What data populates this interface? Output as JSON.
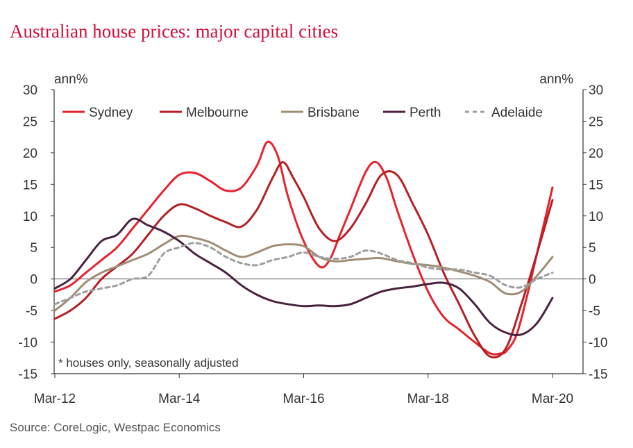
{
  "title": "Australian house prices: major capital cities",
  "source": "Source: CoreLogic, Westpac Economics",
  "chart_data": {
    "type": "line",
    "title": "Australian house prices: major capital cities",
    "unit_left": "ann%",
    "unit_right": "ann%",
    "note": "* houses only, seasonally adjusted",
    "ylim": [
      -15,
      30
    ],
    "yticks": [
      -15,
      -10,
      -5,
      0,
      5,
      10,
      15,
      20,
      25,
      30
    ],
    "xlim": [
      "Mar-12",
      "Mar-20"
    ],
    "xticks": [
      "Mar-12",
      "Mar-14",
      "Mar-16",
      "Mar-18",
      "Mar-20"
    ],
    "grid": false,
    "legend": "top",
    "series": [
      {
        "name": "Sydney",
        "color": "#e8222d",
        "dash": false,
        "x": [
          "2012-03",
          "2012-06",
          "2012-09",
          "2012-12",
          "2013-03",
          "2013-06",
          "2013-09",
          "2013-12",
          "2014-03",
          "2014-06",
          "2014-09",
          "2014-12",
          "2015-03",
          "2015-06",
          "2015-08",
          "2015-10",
          "2015-12",
          "2016-03",
          "2016-06",
          "2016-08",
          "2016-10",
          "2016-12",
          "2017-03",
          "2017-05",
          "2017-07",
          "2017-09",
          "2017-12",
          "2018-03",
          "2018-06",
          "2018-09",
          "2018-12",
          "2019-03",
          "2019-05",
          "2019-06",
          "2019-08",
          "2019-10",
          "2019-12",
          "2020-03"
        ],
        "y": [
          -2,
          -1,
          1,
          3,
          5,
          8,
          11,
          14,
          16.5,
          16.8,
          15.5,
          14,
          14.5,
          18,
          21.7,
          19.5,
          13,
          6,
          2,
          3,
          7,
          11,
          17,
          18.5,
          16,
          11,
          4,
          -2,
          -6,
          -8,
          -10,
          -11.8,
          -11.8,
          -11.5,
          -9,
          -3,
          4,
          14.5
        ]
      },
      {
        "name": "Melbourne",
        "color": "#b32025",
        "dash": false,
        "x": [
          "2012-03",
          "2012-06",
          "2012-09",
          "2012-12",
          "2013-03",
          "2013-06",
          "2013-09",
          "2013-12",
          "2014-03",
          "2014-06",
          "2014-09",
          "2014-12",
          "2015-03",
          "2015-06",
          "2015-09",
          "2015-11",
          "2016-01",
          "2016-03",
          "2016-06",
          "2016-09",
          "2016-12",
          "2017-03",
          "2017-06",
          "2017-09",
          "2017-12",
          "2018-03",
          "2018-06",
          "2018-09",
          "2018-12",
          "2019-03",
          "2019-06",
          "2019-09",
          "2019-12",
          "2020-03"
        ],
        "y": [
          -6.3,
          -5,
          -3,
          0,
          2,
          4,
          7,
          10,
          11.8,
          11.2,
          10,
          9,
          8.3,
          11,
          16,
          18.5,
          16,
          13,
          8,
          6,
          8,
          12,
          16.5,
          16.5,
          12,
          7,
          1,
          -4,
          -9,
          -12.3,
          -11,
          -4,
          4,
          12.5
        ]
      },
      {
        "name": "Brisbane",
        "color": "#a08d75",
        "dash": false,
        "x": [
          "2012-03",
          "2012-06",
          "2012-09",
          "2012-12",
          "2013-03",
          "2013-06",
          "2013-09",
          "2013-12",
          "2014-03",
          "2014-06",
          "2014-09",
          "2014-12",
          "2015-03",
          "2015-06",
          "2015-09",
          "2015-12",
          "2016-03",
          "2016-06",
          "2016-09",
          "2016-12",
          "2017-03",
          "2017-06",
          "2017-09",
          "2017-12",
          "2018-03",
          "2018-06",
          "2018-09",
          "2018-12",
          "2019-03",
          "2019-06",
          "2019-09",
          "2019-12",
          "2020-03"
        ],
        "y": [
          -5,
          -3,
          -0.5,
          1,
          2,
          3,
          4,
          5.5,
          6.8,
          6.5,
          5.8,
          4.5,
          3.5,
          4.2,
          5.2,
          5.5,
          5.2,
          3.5,
          2.8,
          3,
          3.2,
          3.3,
          2.8,
          2.4,
          2.2,
          1.8,
          1.2,
          0.5,
          -0.5,
          -2.3,
          -2,
          0.5,
          3.5
        ]
      },
      {
        "name": "Perth",
        "color": "#4b2140",
        "dash": false,
        "x": [
          "2012-03",
          "2012-06",
          "2012-09",
          "2012-12",
          "2013-03",
          "2013-06",
          "2013-09",
          "2013-12",
          "2014-03",
          "2014-06",
          "2014-09",
          "2014-12",
          "2015-03",
          "2015-06",
          "2015-09",
          "2015-12",
          "2016-03",
          "2016-06",
          "2016-09",
          "2016-12",
          "2017-03",
          "2017-06",
          "2017-09",
          "2017-12",
          "2018-03",
          "2018-06",
          "2018-09",
          "2018-12",
          "2019-03",
          "2019-06",
          "2019-09",
          "2019-12",
          "2020-03"
        ],
        "y": [
          -1.5,
          0,
          3,
          6,
          7,
          9.5,
          8.5,
          7.5,
          6,
          4,
          2.5,
          1,
          -1,
          -2.5,
          -3.5,
          -4,
          -4.3,
          -4.2,
          -4.3,
          -4,
          -3,
          -2,
          -1.5,
          -1.2,
          -0.8,
          -0.6,
          -1.5,
          -4,
          -7,
          -8.5,
          -8.8,
          -7,
          -3
        ]
      },
      {
        "name": "Adelaide",
        "color": "#9e9e9e",
        "dash": true,
        "x": [
          "2012-03",
          "2012-06",
          "2012-09",
          "2012-12",
          "2013-03",
          "2013-06",
          "2013-09",
          "2013-12",
          "2014-03",
          "2014-06",
          "2014-09",
          "2014-12",
          "2015-03",
          "2015-06",
          "2015-09",
          "2015-12",
          "2016-03",
          "2016-06",
          "2016-09",
          "2016-12",
          "2017-03",
          "2017-06",
          "2017-09",
          "2017-12",
          "2018-03",
          "2018-06",
          "2018-09",
          "2018-12",
          "2019-03",
          "2019-06",
          "2019-09",
          "2019-12",
          "2020-03"
        ],
        "y": [
          -4,
          -3,
          -2,
          -1.5,
          -1,
          0,
          0.5,
          4,
          5,
          5.7,
          5,
          3.5,
          2.5,
          2.2,
          3,
          3.5,
          4.2,
          3.5,
          3.2,
          3.5,
          4.5,
          4,
          3,
          2.5,
          1.8,
          1.5,
          1.5,
          1,
          0.5,
          -1,
          -1.3,
          0,
          1
        ]
      }
    ]
  }
}
